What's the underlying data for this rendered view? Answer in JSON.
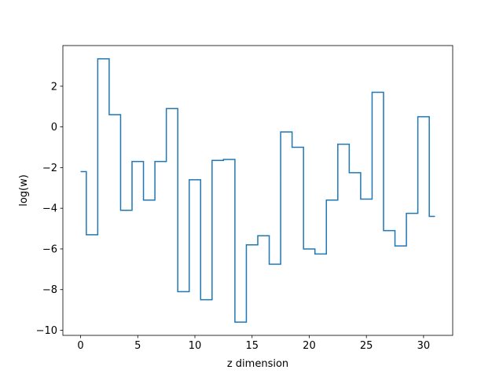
{
  "chart_data": {
    "type": "line",
    "drawstyle": "steps-mid",
    "title": "",
    "xlabel": "z dimension",
    "ylabel": "log(w)",
    "xlim": [
      -1.55,
      32.55
    ],
    "ylim": [
      -10.25,
      4.0
    ],
    "xticks": [
      0,
      5,
      10,
      15,
      20,
      25,
      30
    ],
    "yticks": [
      -10,
      -8,
      -6,
      -4,
      -2,
      0,
      2
    ],
    "grid": false,
    "legend": false,
    "series": [
      {
        "color": "#1f77b4",
        "x": [
          0,
          1,
          2,
          3,
          4,
          5,
          6,
          7,
          8,
          9,
          10,
          11,
          12,
          13,
          14,
          15,
          16,
          17,
          18,
          19,
          20,
          21,
          22,
          23,
          24,
          25,
          26,
          27,
          28,
          29,
          30,
          31
        ],
        "y": [
          -2.2,
          -5.3,
          3.35,
          0.6,
          -4.1,
          -1.7,
          -3.6,
          -1.7,
          0.9,
          -8.1,
          -2.6,
          -8.5,
          -1.65,
          -1.6,
          -9.6,
          -5.8,
          -5.35,
          -6.75,
          -0.25,
          -1.0,
          -6.0,
          -6.25,
          -3.6,
          -0.85,
          -2.25,
          -3.55,
          1.7,
          -5.1,
          -5.85,
          -4.25,
          0.5,
          -4.4
        ]
      }
    ]
  }
}
